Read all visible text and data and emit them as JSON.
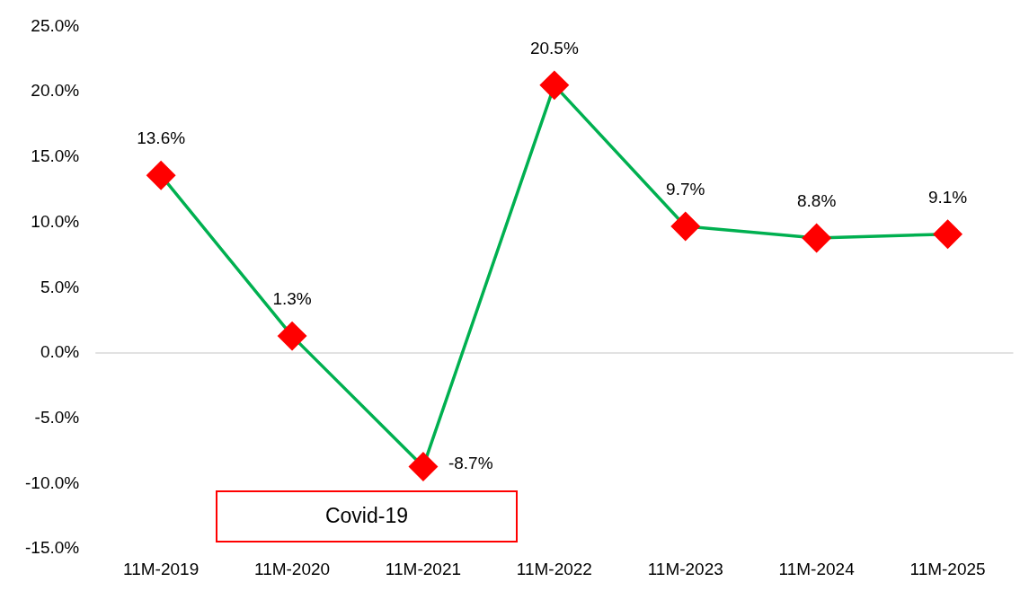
{
  "chart_data": {
    "type": "line",
    "categories": [
      "11M-2019",
      "11M-2020",
      "11M-2021",
      "11M-2022",
      "11M-2023",
      "11M-2024",
      "11M-2025"
    ],
    "series": [
      {
        "color": "#00b050",
        "values": [
          13.6,
          1.3,
          -8.7,
          20.5,
          9.7,
          8.8,
          9.1
        ],
        "colors": [
          "#ff0000",
          "#ff0000",
          "#ff0000",
          "#ff0000",
          "#ff0000",
          "#ff0000",
          "#ff0000"
        ],
        "value_labels": [
          "13.6%",
          "1.3%",
          "-8.7%",
          "20.5%",
          "9.7%",
          "8.8%",
          "9.1%"
        ]
      }
    ],
    "marker": "diamond",
    "line_style": "solid",
    "ylim": [
      -15,
      25
    ],
    "yticks": [
      {
        "value": -15,
        "label": "-15.0%"
      },
      {
        "value": -10,
        "label": "-10.0%"
      },
      {
        "value": -5,
        "label": "-5.0%"
      },
      {
        "value": 0,
        "label": "0.0%"
      },
      {
        "value": 5,
        "label": "5.0%"
      },
      {
        "value": 10,
        "label": "10.0%"
      },
      {
        "value": 15,
        "label": "15.0%"
      },
      {
        "value": 20,
        "label": "20.0%"
      },
      {
        "value": 25,
        "label": "25.0%"
      }
    ],
    "grid": false,
    "legend": false,
    "ref_lines": [
      {
        "axis": "y",
        "value": 0,
        "color": "#d9d9d9"
      }
    ],
    "annotations": [
      "Covid-19"
    ]
  }
}
